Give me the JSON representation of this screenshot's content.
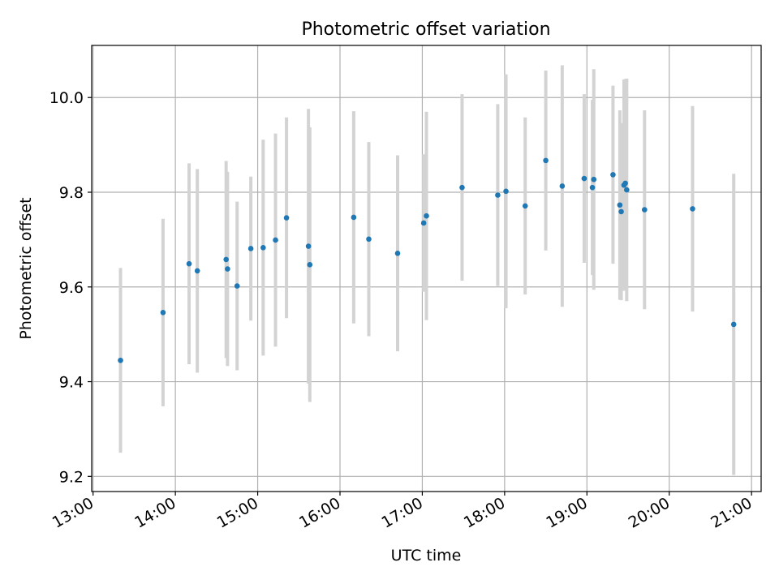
{
  "chart_data": {
    "type": "scatter",
    "title": "Photometric offset variation",
    "xlabel": "UTC time",
    "ylabel": "Photometric offset",
    "x_ticks": [
      "13:00",
      "14:00",
      "15:00",
      "16:00",
      "17:00",
      "18:00",
      "19:00",
      "20:00",
      "21:00"
    ],
    "y_ticks": [
      9.2,
      9.4,
      9.6,
      9.8,
      10.0
    ],
    "xlim": [
      "12:59",
      "21:07"
    ],
    "ylim": [
      9.168,
      10.11
    ],
    "grid": true,
    "legend": "none",
    "colors": {
      "points": "#1f77b4",
      "errorbars": "#d3d3d3",
      "grid": "#b0b0b0"
    },
    "series": [
      {
        "points": [
          {
            "x": "13:20",
            "y": 9.445,
            "yerr": 0.195
          },
          {
            "x": "13:51",
            "y": 9.546,
            "yerr": 0.198
          },
          {
            "x": "14:10",
            "y": 9.649,
            "yerr": 0.212
          },
          {
            "x": "14:16",
            "y": 9.634,
            "yerr": 0.215
          },
          {
            "x": "14:37",
            "y": 9.658,
            "yerr": 0.208
          },
          {
            "x": "14:38",
            "y": 9.638,
            "yerr": 0.205
          },
          {
            "x": "14:45",
            "y": 9.602,
            "yerr": 0.178
          },
          {
            "x": "14:55",
            "y": 9.681,
            "yerr": 0.152
          },
          {
            "x": "15:04",
            "y": 9.683,
            "yerr": 0.228
          },
          {
            "x": "15:13",
            "y": 9.699,
            "yerr": 0.225
          },
          {
            "x": "15:21",
            "y": 9.746,
            "yerr": 0.212
          },
          {
            "x": "15:37",
            "y": 9.686,
            "yerr": 0.29
          },
          {
            "x": "15:38",
            "y": 9.647,
            "yerr": 0.29
          },
          {
            "x": "16:10",
            "y": 9.747,
            "yerr": 0.224
          },
          {
            "x": "16:21",
            "y": 9.701,
            "yerr": 0.205
          },
          {
            "x": "16:42",
            "y": 9.671,
            "yerr": 0.207
          },
          {
            "x": "17:01",
            "y": 9.735,
            "yerr": 0.145
          },
          {
            "x": "17:03",
            "y": 9.75,
            "yerr": 0.22
          },
          {
            "x": "17:29",
            "y": 9.81,
            "yerr": 0.197
          },
          {
            "x": "17:55",
            "y": 9.794,
            "yerr": 0.192
          },
          {
            "x": "18:01",
            "y": 9.802,
            "yerr": 0.247
          },
          {
            "x": "18:15",
            "y": 9.771,
            "yerr": 0.187
          },
          {
            "x": "18:30",
            "y": 9.867,
            "yerr": 0.19
          },
          {
            "x": "18:42",
            "y": 9.813,
            "yerr": 0.255
          },
          {
            "x": "18:58",
            "y": 9.829,
            "yerr": 0.178
          },
          {
            "x": "19:04",
            "y": 9.81,
            "yerr": 0.185
          },
          {
            "x": "19:05",
            "y": 9.827,
            "yerr": 0.233
          },
          {
            "x": "19:19",
            "y": 9.837,
            "yerr": 0.188
          },
          {
            "x": "19:24",
            "y": 9.773,
            "yerr": 0.2
          },
          {
            "x": "19:25",
            "y": 9.759,
            "yerr": 0.187
          },
          {
            "x": "19:27",
            "y": 9.815,
            "yerr": 0.223
          },
          {
            "x": "19:28",
            "y": 9.819,
            "yerr": 0.22
          },
          {
            "x": "19:29",
            "y": 9.805,
            "yerr": 0.235
          },
          {
            "x": "19:42",
            "y": 9.763,
            "yerr": 0.21
          },
          {
            "x": "20:17",
            "y": 9.765,
            "yerr": 0.217
          },
          {
            "x": "20:47",
            "y": 9.521,
            "yerr": 0.318
          }
        ]
      }
    ]
  }
}
